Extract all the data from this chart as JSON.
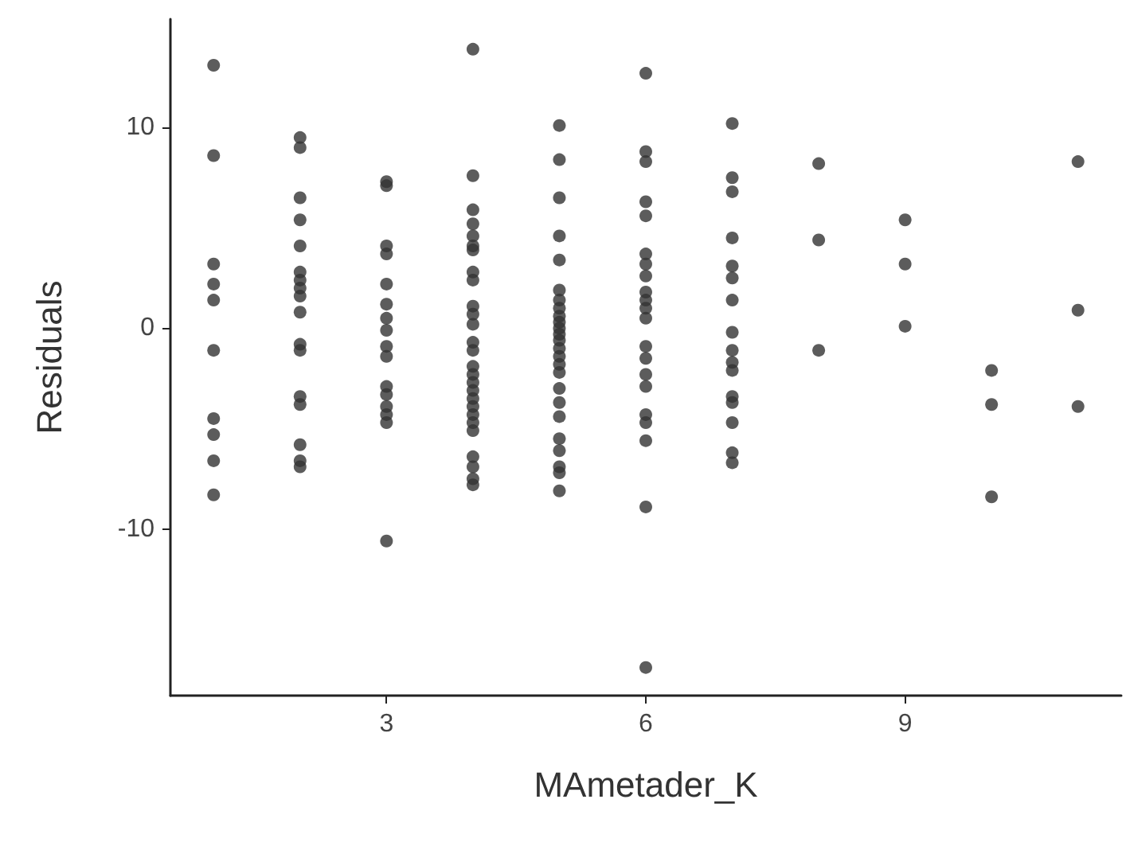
{
  "chart_data": {
    "type": "scatter",
    "xlabel": "MAmetader_K",
    "ylabel": "Residuals",
    "xlim": [
      0.5,
      11.5
    ],
    "ylim": [
      -18.3,
      15.4
    ],
    "xticks": [
      3,
      6,
      9
    ],
    "yticks": [
      -10,
      0,
      10
    ],
    "grid": false,
    "marker": "circle",
    "series": [
      {
        "color": "#333333",
        "x": [
          1,
          1,
          1,
          1,
          1,
          1,
          1,
          1,
          1,
          1,
          2,
          2,
          2,
          2,
          2,
          2,
          2,
          2,
          2,
          2,
          2,
          2,
          2,
          2,
          2,
          2,
          2,
          3,
          3,
          3,
          3,
          3,
          3,
          3,
          3,
          3,
          3,
          3,
          3,
          3,
          3,
          3,
          3,
          4,
          4,
          4,
          4,
          4,
          4,
          4,
          4,
          4,
          4,
          4,
          4,
          4,
          4,
          4,
          4,
          4,
          4,
          4,
          4,
          4,
          4,
          4,
          4,
          4,
          4,
          4,
          5,
          5,
          5,
          5,
          5,
          5,
          5,
          5,
          5,
          5,
          5,
          5,
          5,
          5,
          5,
          5,
          5,
          5,
          5,
          5,
          5,
          5,
          5,
          5,
          5,
          6,
          6,
          6,
          6,
          6,
          6,
          6,
          6,
          6,
          6,
          6,
          6,
          6,
          6,
          6,
          6,
          6,
          6,
          6,
          6,
          6,
          7,
          7,
          7,
          7,
          7,
          7,
          7,
          7,
          7,
          7,
          7,
          7,
          7,
          7,
          7,
          7,
          8,
          8,
          8,
          9,
          9,
          9,
          10,
          10,
          10,
          11,
          11,
          11
        ],
        "values": [
          13.1,
          8.6,
          3.2,
          2.2,
          1.4,
          -1.1,
          -4.5,
          -5.3,
          -6.6,
          -8.3,
          9.5,
          9.0,
          6.5,
          5.4,
          4.1,
          2.8,
          2.4,
          2.0,
          1.6,
          0.8,
          -0.8,
          -1.1,
          -3.4,
          -3.8,
          -5.8,
          -6.6,
          -6.9,
          7.3,
          7.1,
          4.1,
          3.7,
          2.2,
          1.2,
          0.5,
          -0.1,
          -0.9,
          -1.4,
          -2.9,
          -3.3,
          -3.9,
          -4.3,
          -4.7,
          -10.6,
          13.9,
          7.6,
          5.9,
          5.2,
          4.6,
          4.1,
          3.9,
          2.8,
          2.4,
          1.1,
          0.7,
          0.2,
          -0.7,
          -1.1,
          -1.9,
          -2.3,
          -2.7,
          -3.1,
          -3.5,
          -3.9,
          -4.3,
          -4.7,
          -5.1,
          -6.4,
          -6.9,
          -7.5,
          -7.8,
          10.1,
          8.4,
          6.5,
          4.6,
          3.4,
          1.9,
          1.4,
          1.0,
          0.6,
          0.3,
          0,
          -0.3,
          -0.6,
          -1.0,
          -1.4,
          -1.8,
          -2.2,
          -3.0,
          -3.7,
          -4.4,
          -5.5,
          -6.1,
          -6.9,
          -7.2,
          -8.1,
          12.7,
          8.8,
          8.3,
          6.3,
          5.6,
          3.7,
          3.2,
          2.6,
          1.8,
          1.4,
          1.0,
          0.5,
          -0.9,
          -1.5,
          -2.3,
          -2.9,
          -4.3,
          -4.7,
          -5.6,
          -8.9,
          -16.9,
          10.2,
          7.5,
          6.8,
          4.5,
          3.1,
          2.5,
          1.4,
          -0.2,
          -1.1,
          -1.7,
          -2.1,
          -3.4,
          -3.7,
          -4.7,
          -6.2,
          -6.7,
          8.2,
          4.4,
          -1.1,
          5.4,
          3.2,
          0.1,
          -2.1,
          -3.8,
          -8.4,
          8.3,
          0.9,
          -3.9
        ]
      }
    ]
  }
}
